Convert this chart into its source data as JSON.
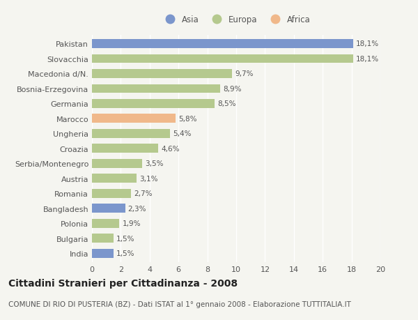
{
  "categories": [
    "Pakistan",
    "Slovacchia",
    "Macedonia d/N.",
    "Bosnia-Erzegovina",
    "Germania",
    "Marocco",
    "Ungheria",
    "Croazia",
    "Serbia/Montenegro",
    "Austria",
    "Romania",
    "Bangladesh",
    "Polonia",
    "Bulgaria",
    "India"
  ],
  "values": [
    18.1,
    18.1,
    9.7,
    8.9,
    8.5,
    5.8,
    5.4,
    4.6,
    3.5,
    3.1,
    2.7,
    2.3,
    1.9,
    1.5,
    1.5
  ],
  "labels": [
    "18,1%",
    "18,1%",
    "9,7%",
    "8,9%",
    "8,5%",
    "5,8%",
    "5,4%",
    "4,6%",
    "3,5%",
    "3,1%",
    "2,7%",
    "2,3%",
    "1,9%",
    "1,5%",
    "1,5%"
  ],
  "continent": [
    "Asia",
    "Europa",
    "Europa",
    "Europa",
    "Europa",
    "Africa",
    "Europa",
    "Europa",
    "Europa",
    "Europa",
    "Europa",
    "Asia",
    "Europa",
    "Europa",
    "Asia"
  ],
  "colors": {
    "Asia": "#7b96cc",
    "Europa": "#b5c98e",
    "Africa": "#f0b88a"
  },
  "legend_order": [
    "Asia",
    "Europa",
    "Africa"
  ],
  "xlim": [
    0,
    20
  ],
  "xticks": [
    0,
    2,
    4,
    6,
    8,
    10,
    12,
    14,
    16,
    18,
    20
  ],
  "title": "Cittadini Stranieri per Cittadinanza - 2008",
  "subtitle": "COMUNE DI RIO DI PUSTERIA (BZ) - Dati ISTAT al 1° gennaio 2008 - Elaborazione TUTTITALIA.IT",
  "bg_color": "#f5f5f0",
  "bar_height": 0.6,
  "title_fontsize": 10,
  "subtitle_fontsize": 7.5,
  "label_fontsize": 7.5,
  "ytick_fontsize": 8,
  "xtick_fontsize": 8,
  "legend_fontsize": 8.5
}
